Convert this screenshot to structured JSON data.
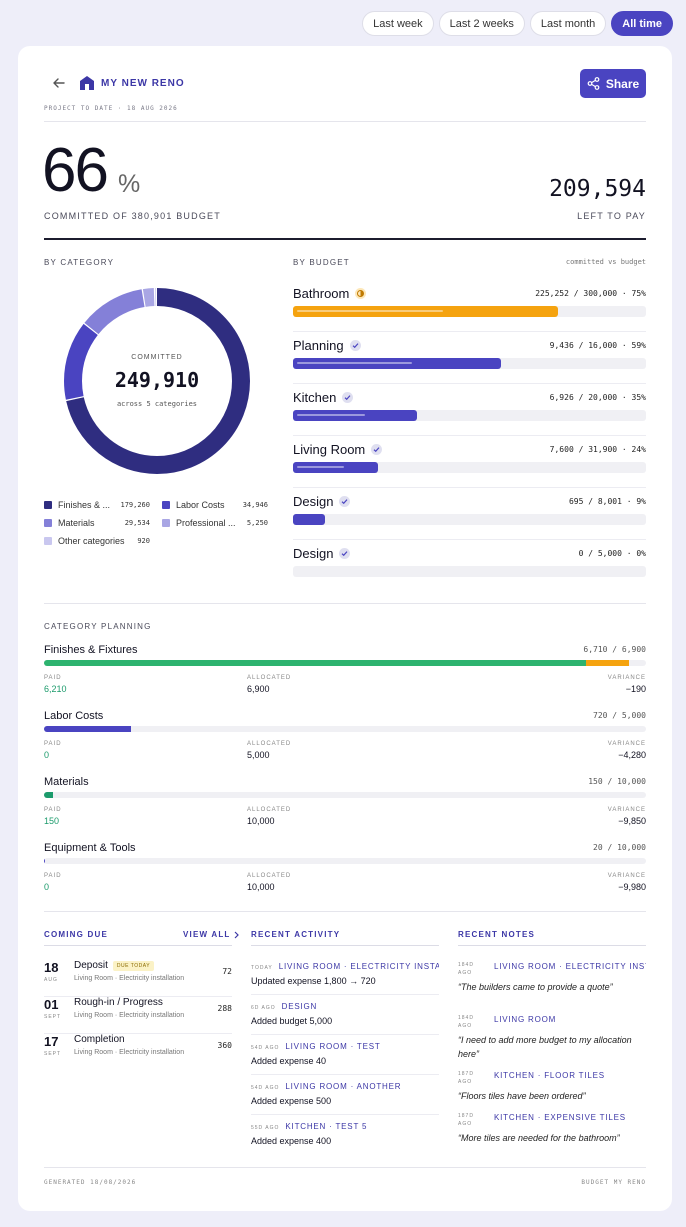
{
  "filters": [
    {
      "label": "Last week",
      "active": false
    },
    {
      "label": "Last 2 weeks",
      "active": false
    },
    {
      "label": "Last month",
      "active": false
    },
    {
      "label": "All time",
      "active": true
    }
  ],
  "header": {
    "title": "MY NEW RENO",
    "subtitle": "PROJECT TO DATE · 18 AUG 2026",
    "share_label": "Share"
  },
  "summary": {
    "percent": "66",
    "percent_sign": "%",
    "committed_label": "COMMITTED OF 380,901 BUDGET",
    "left_value": "209,594",
    "left_label": "LEFT TO PAY"
  },
  "by_category": {
    "title": "BY CATEGORY",
    "center_label": "COMMITTED",
    "center_value": "249,910",
    "center_sub": "across 5 categories",
    "legend": [
      {
        "name": "Finishes & ...",
        "value": "179,260",
        "color": "#2f2d80"
      },
      {
        "name": "Labor Costs",
        "value": "34,946",
        "color": "#4a44c1"
      },
      {
        "name": "Materials",
        "value": "29,534",
        "color": "#8480d8"
      },
      {
        "name": "Professional ...",
        "value": "5,250",
        "color": "#a9a6e4"
      },
      {
        "name": "Other categories",
        "value": "920",
        "color": "#c9c7ef"
      }
    ]
  },
  "chart_data": {
    "type": "pie",
    "categories": [
      "Finishes & ...",
      "Labor Costs",
      "Materials",
      "Professional ...",
      "Other categories"
    ],
    "values": [
      179260,
      34946,
      29534,
      5250,
      920
    ],
    "colors": [
      "#2f2d80",
      "#4a44c1",
      "#8480d8",
      "#a9a6e4",
      "#c9c7ef"
    ]
  },
  "by_budget": {
    "title": "BY BUDGET",
    "subtitle": "committed vs budget",
    "rows": [
      {
        "name": "Bathroom",
        "nums": "225,252 / 300,000 · 75%",
        "fraction": 0.75,
        "color": "#f5a30f",
        "status": "warn"
      },
      {
        "name": "Planning",
        "nums": "9,436 / 16,000 · 59%",
        "fraction": 0.59,
        "color": "#4a44c1",
        "status": "ok"
      },
      {
        "name": "Kitchen",
        "nums": "6,926 / 20,000 · 35%",
        "fraction": 0.35,
        "color": "#4a44c1",
        "status": "ok"
      },
      {
        "name": "Living Room",
        "nums": "7,600 / 31,900 · 24%",
        "fraction": 0.24,
        "color": "#4a44c1",
        "status": "ok"
      },
      {
        "name": "Design",
        "nums": "695 / 8,001 · 9%",
        "fraction": 0.09,
        "color": "#4a44c1",
        "status": "ok"
      },
      {
        "name": "Design",
        "nums": "0 / 5,000 · 0%",
        "fraction": 0.0,
        "color": "#4a44c1",
        "status": "ok"
      }
    ]
  },
  "category_planning": {
    "title": "CATEGORY PLANNING",
    "paid_label": "PAID",
    "allocated_label": "ALLOCATED",
    "variance_label": "VARIANCE",
    "rows": [
      {
        "name": "Finishes & Fixtures",
        "ratio": "6,710 / 6,900",
        "paid": "6,210",
        "allocated": "6,900",
        "variance": "−190",
        "paid_fraction": 0.9,
        "committed_fraction": 0.972,
        "color": "#2db36f"
      },
      {
        "name": "Labor Costs",
        "ratio": "720 / 5,000",
        "paid": "0",
        "allocated": "5,000",
        "variance": "−4,280",
        "paid_fraction": 0.0,
        "committed_fraction": 0.144,
        "color": "#4a44c1"
      },
      {
        "name": "Materials",
        "ratio": "150 / 10,000",
        "paid": "150",
        "allocated": "10,000",
        "variance": "−9,850",
        "paid_fraction": 0.015,
        "committed_fraction": 0.015,
        "color": "#1c9b6c"
      },
      {
        "name": "Equipment & Tools",
        "ratio": "20 / 10,000",
        "paid": "0",
        "allocated": "10,000",
        "variance": "−9,980",
        "paid_fraction": 0.0,
        "committed_fraction": 0.002,
        "color": "#4a44c1"
      }
    ]
  },
  "coming_due": {
    "title": "COMING DUE",
    "view_all": "VIEW ALL",
    "items": [
      {
        "day": "18",
        "month": "AUG",
        "name": "Deposit",
        "tag": "DUE TODAY",
        "sub": "Living Room · Electricity installation",
        "value": "72"
      },
      {
        "day": "01",
        "month": "SEPT",
        "name": "Rough-in / Progress",
        "tag": "",
        "sub": "Living Room · Electricity installation",
        "value": "288"
      },
      {
        "day": "17",
        "month": "SEPT",
        "name": "Completion",
        "tag": "",
        "sub": "Living Room · Electricity installation",
        "value": "360"
      }
    ]
  },
  "recent_activity": {
    "title": "RECENT ACTIVITY",
    "items": [
      {
        "ago": "TODAY",
        "context": "LIVING ROOM · ELECTRICITY INSTALL...",
        "text": "Updated expense 1,800 → 720"
      },
      {
        "ago": "6D AGO",
        "context": "DESIGN",
        "text": "Added budget 5,000"
      },
      {
        "ago": "54D AGO",
        "context": "LIVING ROOM · TEST",
        "text": "Added expense 40"
      },
      {
        "ago": "54D AGO",
        "context": "LIVING ROOM · ANOTHER",
        "text": "Added expense 500"
      },
      {
        "ago": "55D AGO",
        "context": "KITCHEN · TEST 5",
        "text": "Added expense 400"
      }
    ]
  },
  "recent_notes": {
    "title": "RECENT NOTES",
    "items": [
      {
        "ago": "184D AGO",
        "context": "LIVING ROOM · ELECTRICITY INSTAL...",
        "text": "“The builders came to provide a quote”"
      },
      {
        "ago": "184D AGO",
        "context": "LIVING ROOM",
        "text": "“I need to add more budget to my allocation here”"
      },
      {
        "ago": "187D AGO",
        "context": "KITCHEN · FLOOR TILES",
        "text": "“Floors tiles have been ordered”"
      },
      {
        "ago": "187D AGO",
        "context": "KITCHEN · EXPENSIVE TILES",
        "text": "“More tiles are needed for the bathroom”"
      }
    ]
  },
  "footer": {
    "generated": "GENERATED 18/08/2026",
    "brand": "BUDGET MY RENO"
  }
}
